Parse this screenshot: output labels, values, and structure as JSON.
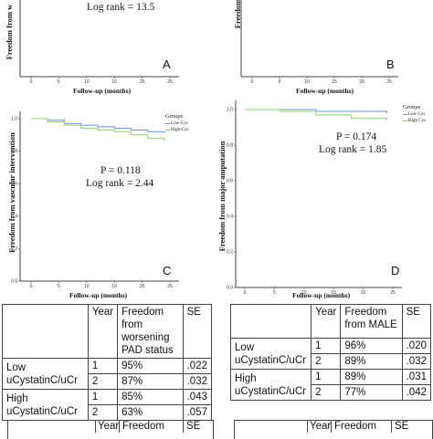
{
  "colors": {
    "low_cyst": "#6f8fd6",
    "high_cyst": "#8fd16f",
    "axis": "#444444"
  },
  "panels": {
    "a": {
      "letter": "A",
      "ylabel": "Freedom from w",
      "log_rank": "Log rank = 13.5",
      "xlabel": "Follow-up (months)",
      "xticks": [
        "0",
        "5",
        "10",
        "15",
        "20",
        "25"
      ]
    },
    "b": {
      "letter": "B",
      "ylabel": "Freedom",
      "xlabel": "Follow-up (months)",
      "xticks": [
        "0",
        "5",
        "10",
        "15",
        "20",
        "25"
      ]
    },
    "c": {
      "letter": "C",
      "ylabel": "Freedom from vascular intervention",
      "xlabel": "Follow-up (months)",
      "p_value": "P = 0.118",
      "log_rank": "Log rank = 2.44",
      "xticks": [
        "0",
        "5",
        "10",
        "15",
        "20",
        "25"
      ],
      "yticks": [
        "1.0",
        "0.8",
        "0.6",
        "0.4",
        "0.2",
        "0.0"
      ],
      "legend": {
        "title": "Groups",
        "items": [
          "Low-Cys",
          "High-Cys"
        ]
      }
    },
    "d": {
      "letter": "D",
      "ylabel": "Freedom from major amputation",
      "xlabel": "Follow-up (months)",
      "p_value": "P = 0.174",
      "log_rank": "Log rank = 1.85",
      "xticks": [
        "0",
        "5",
        "10",
        "15",
        "20",
        "25"
      ],
      "yticks": [
        "1.0",
        "0.8",
        "0.6",
        "0.4",
        "0.2",
        "0.0"
      ],
      "legend": {
        "title": "Groups",
        "items": [
          "Low Cys",
          "High Cys"
        ]
      }
    }
  },
  "chart_data": [
    {
      "type": "line",
      "panel": "C",
      "xlabel": "Follow-up (months)",
      "ylabel": "Freedom from vascular intervention",
      "xlim": [
        0,
        25
      ],
      "ylim": [
        0,
        1
      ],
      "series": [
        {
          "name": "Low-Cys",
          "x": [
            0,
            3,
            6,
            9,
            12,
            15,
            18,
            21,
            24
          ],
          "values": [
            1.0,
            0.99,
            0.97,
            0.96,
            0.95,
            0.94,
            0.93,
            0.92,
            0.91
          ]
        },
        {
          "name": "High-Cys",
          "x": [
            0,
            3,
            6,
            9,
            12,
            15,
            18,
            21,
            24
          ],
          "values": [
            1.0,
            0.98,
            0.96,
            0.94,
            0.93,
            0.92,
            0.9,
            0.88,
            0.86
          ]
        }
      ]
    },
    {
      "type": "line",
      "panel": "D",
      "xlabel": "Follow-up (months)",
      "ylabel": "Freedom from major amputation",
      "xlim": [
        0,
        25
      ],
      "ylim": [
        0,
        1
      ],
      "series": [
        {
          "name": "Low Cys",
          "x": [
            0,
            6,
            12,
            18,
            24
          ],
          "values": [
            1.0,
            1.0,
            0.99,
            0.99,
            0.98
          ]
        },
        {
          "name": "High Cys",
          "x": [
            0,
            6,
            12,
            18,
            24
          ],
          "values": [
            1.0,
            0.99,
            0.97,
            0.95,
            0.94
          ]
        }
      ]
    }
  ],
  "table_left": {
    "header": [
      "",
      "Year",
      "Freedom from worsening PAD status",
      "SE"
    ],
    "rows": [
      [
        "Low uCystatinC/uCr",
        "1",
        "95%",
        ".022"
      ],
      [
        "",
        "2",
        "87%",
        ".032"
      ],
      [
        "High uCystatinC/uCr",
        "1",
        "85%",
        ".043"
      ],
      [
        "",
        "2",
        "63%",
        ".057"
      ]
    ]
  },
  "table_right": {
    "header": [
      "",
      "Year",
      "Freedom from MALE",
      "SE"
    ],
    "rows": [
      [
        "Low uCystatinC/uCr",
        "1",
        "96%",
        ".020"
      ],
      [
        "",
        "2",
        "89%",
        ".032"
      ],
      [
        "High uCystatinC/uCr",
        "1",
        "89%",
        ".031"
      ],
      [
        "",
        "2",
        "77%",
        ".042"
      ]
    ]
  },
  "bottom_partial": {
    "year": "Year",
    "freedom": "Freedom",
    "se": "SE"
  }
}
